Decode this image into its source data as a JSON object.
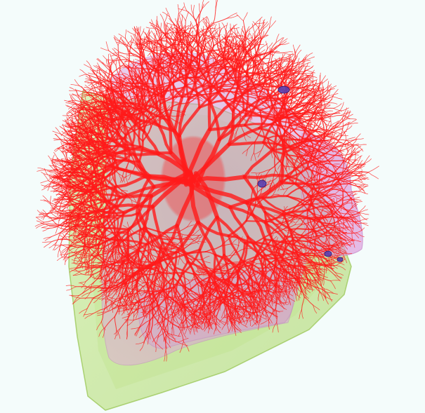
{
  "scene": {
    "background_color": "#f4fcfb",
    "structures": [
      {
        "id": "outer-shell",
        "color": "#b8e07a",
        "opacity": 0.6
      },
      {
        "id": "lung-lobes",
        "color": "#d78fd6",
        "opacity": 0.5
      },
      {
        "id": "vessel-tree",
        "color": "#ff1a1a",
        "opacity": 0.8
      },
      {
        "id": "nodules",
        "color": "#5a3fb0",
        "opacity": 0.9
      }
    ],
    "nodule_count": 4
  }
}
